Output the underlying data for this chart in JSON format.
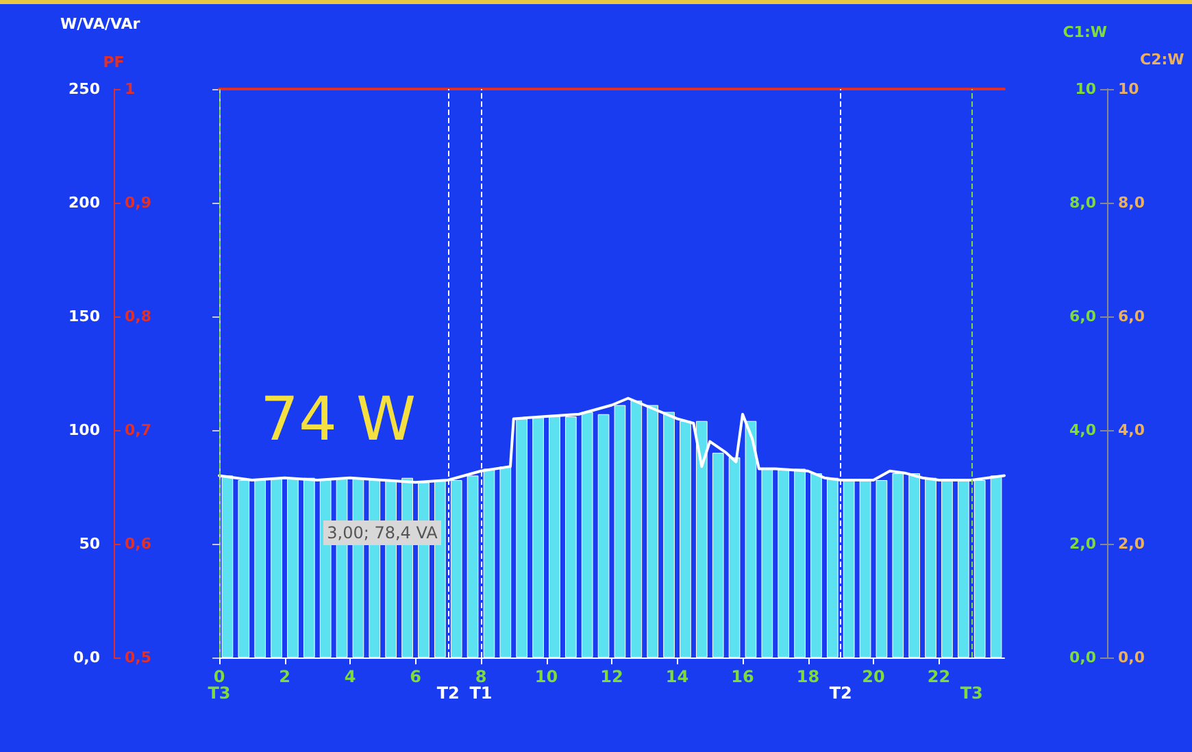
{
  "chart_data": {
    "type": "bar",
    "ylabel": "W/VA/VAr",
    "y2label": "PF",
    "y3label": "C1:W",
    "x": [
      0.25,
      0.75,
      1.25,
      1.75,
      2.25,
      2.75,
      3.25,
      3.75,
      4.25,
      4.75,
      5.25,
      5.75,
      6.25,
      6.75,
      7.25,
      7.75,
      8.25,
      8.75,
      9.25,
      9.75,
      10.25,
      10.75,
      11.25,
      11.75,
      12.25,
      12.75,
      13.25,
      13.75,
      14.25,
      14.75,
      15.25,
      15.75,
      16.25,
      16.75,
      17.25,
      17.75,
      18.25,
      18.75,
      19.25,
      19.75,
      20.25,
      20.75,
      21.25,
      21.75,
      22.25,
      22.75,
      23.25,
      23.75
    ],
    "series": [
      {
        "color": "#5ce1f0",
        "values": [
          80,
          78,
          78,
          79,
          79,
          79,
          78,
          79,
          79,
          78,
          78,
          79,
          77,
          78,
          78,
          80,
          83,
          84,
          105,
          106,
          106,
          106,
          108,
          107,
          111,
          113,
          111,
          108,
          104,
          104,
          90,
          88,
          104,
          83,
          83,
          83,
          81,
          79,
          78,
          78,
          78,
          81,
          81,
          79,
          78,
          78,
          78,
          80
        ]
      },
      {
        "type": "line",
        "color": "#ffffff",
        "x": [
          0,
          1,
          2,
          3,
          4,
          5,
          6,
          7,
          8,
          8.9,
          9,
          10,
          11,
          12,
          12.5,
          13,
          14,
          14.5,
          14.75,
          15,
          15.5,
          15.8,
          16,
          16.3,
          16.5,
          17,
          18,
          18.5,
          19,
          20,
          20.5,
          21,
          21.5,
          22,
          23,
          24
        ],
        "values": [
          80,
          78,
          79,
          78,
          79,
          78,
          77,
          78,
          82,
          84,
          105,
          106,
          107,
          111,
          114,
          111,
          105,
          103,
          84,
          95,
          90,
          86,
          107,
          96,
          83,
          83,
          82,
          79,
          78,
          78,
          82,
          81,
          79,
          78,
          78,
          80
        ]
      },
      {
        "type": "line",
        "color": "#e0302a",
        "axis": "y2",
        "x": [
          0,
          24
        ],
        "values": [
          1,
          1
        ]
      }
    ],
    "xlim": [
      0,
      24
    ],
    "xticks": [
      0,
      2,
      4,
      6,
      8,
      10,
      12,
      14,
      16,
      18,
      20,
      22
    ],
    "ylim": [
      0,
      250
    ],
    "yticks": [
      {
        "value": 0,
        "label": "0,0"
      },
      50,
      100,
      150,
      200,
      250
    ],
    "y2lim": [
      0.5,
      1
    ],
    "y2ticks": [
      {
        "value": 0.5,
        "label": "0,5"
      },
      {
        "value": 0.6,
        "label": "0,6"
      },
      {
        "value": 0.7,
        "label": "0,7"
      },
      {
        "value": 0.8,
        "label": "0,8"
      },
      {
        "value": 0.9,
        "label": "0,9"
      },
      1
    ],
    "y3lim": [
      0,
      10
    ],
    "y3ticks": [
      {
        "value": 0,
        "label": "0,0"
      },
      {
        "value": 2,
        "label": "2,0"
      },
      {
        "value": 4,
        "label": "4,0"
      },
      {
        "value": 6,
        "label": "6,0"
      },
      {
        "value": 8,
        "label": "8,0"
      },
      {
        "value": 10,
        "label": "10"
      }
    ],
    "ref_lines": [
      {
        "axis": "x",
        "value": 0,
        "label": "T3",
        "color": "#7ddc3c",
        "line_style": "dashed"
      },
      {
        "axis": "x",
        "value": 7,
        "label": "T2",
        "color": "#ffffff",
        "line_style": "dashed"
      },
      {
        "axis": "x",
        "value": 8,
        "label": "T1",
        "color": "#ffffff",
        "line_style": "dashed"
      },
      {
        "axis": "x",
        "value": 19,
        "label": "T2",
        "color": "#ffffff",
        "line_style": "dashed"
      },
      {
        "axis": "x",
        "value": 23,
        "label": "T3",
        "color": "#7ddc3c",
        "line_style": "dashed"
      }
    ],
    "annotations": [
      "74 W",
      {
        "text": "3,00; 78,4 VA",
        "x": 3,
        "y": 78.4
      },
      "C2:W"
    ],
    "grid": false,
    "marker": "none"
  }
}
